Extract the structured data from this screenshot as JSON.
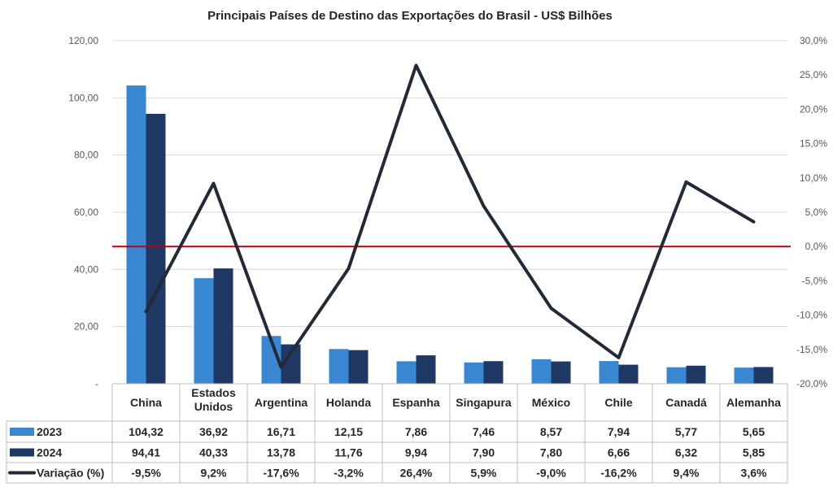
{
  "chart_data": {
    "type": "bar",
    "title": "Principais  Países de Destino das Exportações do Brasil - US$ Bilhões",
    "categories": [
      "China",
      "Estados Unidos",
      "Argentina",
      "Holanda",
      "Espanha",
      "Singapura",
      "México",
      "Chile",
      "Canadá",
      "Alemanha"
    ],
    "series": [
      {
        "name": "2023",
        "type": "bar",
        "axis": "left",
        "color": "#3a87d1",
        "values": [
          104.32,
          36.92,
          16.71,
          12.15,
          7.86,
          7.46,
          8.57,
          7.94,
          5.77,
          5.65
        ],
        "labels": [
          "104,32",
          "36,92",
          "16,71",
          "12,15",
          "7,86",
          "7,46",
          "8,57",
          "7,94",
          "5,77",
          "5,65"
        ]
      },
      {
        "name": "2024",
        "type": "bar",
        "axis": "right-bar",
        "color": "#1f3864",
        "values": [
          94.41,
          40.33,
          13.78,
          11.76,
          9.94,
          7.9,
          7.8,
          6.66,
          6.32,
          5.85
        ],
        "labels": [
          "94,41",
          "40,33",
          "13,78",
          "11,76",
          "9,94",
          "7,90",
          "7,80",
          "6,66",
          "6,32",
          "5,85"
        ]
      },
      {
        "name": "Variação (%)",
        "type": "line",
        "axis": "right",
        "color": "#222a35",
        "values": [
          -9.5,
          9.2,
          -17.6,
          -3.2,
          26.4,
          5.9,
          -9.0,
          -16.2,
          9.4,
          3.6
        ],
        "labels": [
          "-9,5%",
          "9,2%",
          "-17,6%",
          "-3,2%",
          "26,4%",
          "5,9%",
          "-9,0%",
          "-16,2%",
          "9,4%",
          "3,6%"
        ]
      }
    ],
    "y_left": {
      "min": 0,
      "max": 120,
      "ticks": [
        "-",
        "20,00",
        "40,00",
        "60,00",
        "80,00",
        "100,00",
        "120,00"
      ]
    },
    "y_right": {
      "min": -20,
      "max": 30,
      "ticks": [
        "-20,0%",
        "-15,0%",
        "-10,0%",
        "-5,0%",
        "0,0%",
        "5,0%",
        "10,0%",
        "15,0%",
        "20,0%",
        "25,0%",
        "30,0%"
      ]
    },
    "reference_line": {
      "axis": "right",
      "value": 0,
      "color": "#c00000"
    },
    "grid": true,
    "data_table": true
  }
}
